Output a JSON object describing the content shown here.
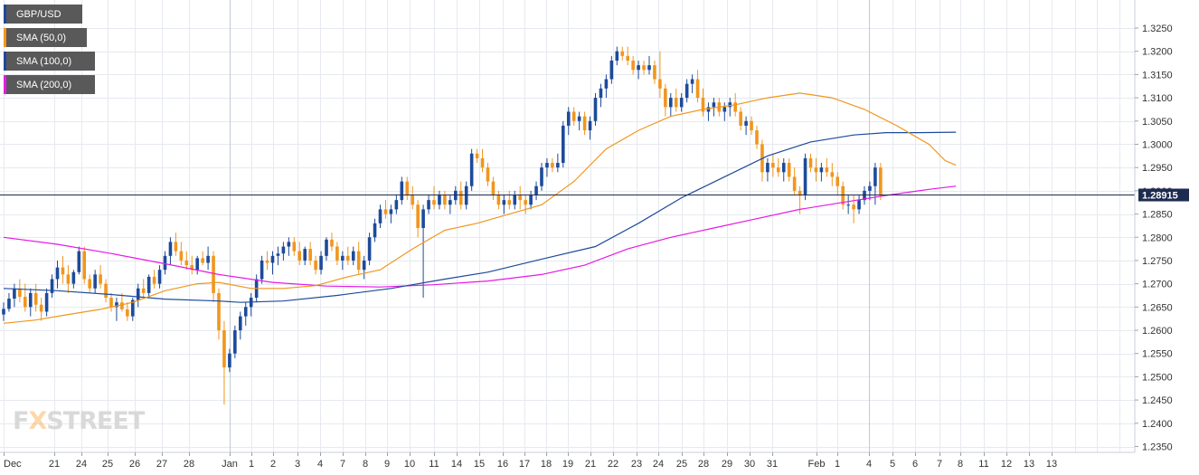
{
  "legend": [
    {
      "label": "GBP/USD",
      "color": "#1d4a9b"
    },
    {
      "label": "SMA (50,0)",
      "color": "#f0961e"
    },
    {
      "label": "SMA (100,0)",
      "color": "#1d4a9b"
    },
    {
      "label": "SMA (200,0)",
      "color": "#e619e6"
    }
  ],
  "logo": {
    "part1": "F",
    "part2": "X",
    "part3": "STREET"
  },
  "colors": {
    "up": "#1d4a9b",
    "down": "#f0961e",
    "sma50": "#f0961e",
    "sma100": "#1d4a9b",
    "sma200": "#e619e6",
    "price_line": "#1d2b50",
    "grid": "#e6e9ef"
  },
  "chart_data": {
    "type": "candlestick",
    "title": "",
    "current_price": 1.28915,
    "current_price_label": "1.28915",
    "ylim": [
      1.2335,
      1.3275
    ],
    "y_ticks": [
      "1.2350",
      "1.2400",
      "1.2450",
      "1.2500",
      "1.2550",
      "1.2600",
      "1.2650",
      "1.2700",
      "1.2750",
      "1.2800",
      "1.2850",
      "1.2900",
      "1.2950",
      "1.3000",
      "1.3050",
      "1.3100",
      "1.3150",
      "1.3200",
      "1.3250"
    ],
    "x_labels": [
      "Dec",
      "21",
      "24",
      "25",
      "26",
      "27",
      "28",
      "Jan",
      "1",
      "2",
      "3",
      "4",
      "7",
      "8",
      "9",
      "10",
      "11",
      "14",
      "15",
      "16",
      "17",
      "18",
      "19",
      "21",
      "22",
      "23",
      "24",
      "25",
      "28",
      "29",
      "30",
      "31",
      "Feb",
      "1",
      "4",
      "5",
      "6",
      "7",
      "8",
      "11",
      "12",
      "13",
      "13"
    ],
    "x_label_index": [
      0,
      4.5,
      8,
      11,
      14,
      17,
      20,
      23,
      26,
      28.2,
      31,
      34,
      37,
      40,
      43,
      46,
      49,
      52,
      55,
      57.5,
      60,
      63,
      66,
      69,
      72,
      75,
      78,
      81,
      84,
      87,
      90,
      93,
      96,
      99,
      102,
      105,
      108,
      111,
      114,
      117,
      120,
      123,
      126
    ],
    "candles": [
      [
        1.2634,
        1.266,
        1.262,
        1.2646
      ],
      [
        1.2646,
        1.268,
        1.264,
        1.2668
      ],
      [
        1.2668,
        1.27,
        1.265,
        1.269
      ],
      [
        1.269,
        1.271,
        1.266,
        1.2672
      ],
      [
        1.2672,
        1.27,
        1.264,
        1.265
      ],
      [
        1.265,
        1.269,
        1.263,
        1.268
      ],
      [
        1.268,
        1.27,
        1.264,
        1.2655
      ],
      [
        1.2655,
        1.267,
        1.262,
        1.264
      ],
      [
        1.264,
        1.269,
        1.263,
        1.268
      ],
      [
        1.268,
        1.272,
        1.267,
        1.271
      ],
      [
        1.271,
        1.275,
        1.269,
        1.2735
      ],
      [
        1.2735,
        1.276,
        1.27,
        1.272
      ],
      [
        1.272,
        1.274,
        1.268,
        1.27
      ],
      [
        1.27,
        1.273,
        1.269,
        1.2725
      ],
      [
        1.2725,
        1.278,
        1.272,
        1.277
      ],
      [
        1.277,
        1.278,
        1.27,
        1.271
      ],
      [
        1.271,
        1.272,
        1.268,
        1.269
      ],
      [
        1.269,
        1.273,
        1.268,
        1.272
      ],
      [
        1.272,
        1.274,
        1.269,
        1.27
      ],
      [
        1.27,
        1.271,
        1.266,
        1.267
      ],
      [
        1.267,
        1.268,
        1.264,
        1.265
      ],
      [
        1.265,
        1.267,
        1.262,
        1.266
      ],
      [
        1.266,
        1.268,
        1.264,
        1.2645
      ],
      [
        1.2645,
        1.266,
        1.262,
        1.263
      ],
      [
        1.263,
        1.267,
        1.262,
        1.2665
      ],
      [
        1.2665,
        1.27,
        1.265,
        1.269
      ],
      [
        1.269,
        1.271,
        1.267,
        1.268
      ],
      [
        1.268,
        1.272,
        1.267,
        1.2715
      ],
      [
        1.2715,
        1.273,
        1.269,
        1.27
      ],
      [
        1.27,
        1.274,
        1.269,
        1.273
      ],
      [
        1.273,
        1.277,
        1.272,
        1.276
      ],
      [
        1.276,
        1.28,
        1.274,
        1.279
      ],
      [
        1.279,
        1.281,
        1.276,
        1.277
      ],
      [
        1.277,
        1.279,
        1.274,
        1.275
      ],
      [
        1.275,
        1.277,
        1.273,
        1.274
      ],
      [
        1.274,
        1.276,
        1.272,
        1.273
      ],
      [
        1.273,
        1.276,
        1.272,
        1.2755
      ],
      [
        1.2755,
        1.277,
        1.274,
        1.2745
      ],
      [
        1.2745,
        1.278,
        1.273,
        1.276
      ],
      [
        1.276,
        1.277,
        1.266,
        1.268
      ],
      [
        1.268,
        1.269,
        1.258,
        1.26
      ],
      [
        1.26,
        1.262,
        1.244,
        1.252
      ],
      [
        1.252,
        1.256,
        1.251,
        1.255
      ],
      [
        1.255,
        1.261,
        1.254,
        1.26
      ],
      [
        1.26,
        1.264,
        1.258,
        1.263
      ],
      [
        1.263,
        1.266,
        1.261,
        1.265
      ],
      [
        1.265,
        1.268,
        1.263,
        1.267
      ],
      [
        1.267,
        1.272,
        1.266,
        1.271
      ],
      [
        1.271,
        1.276,
        1.27,
        1.275
      ],
      [
        1.275,
        1.277,
        1.273,
        1.2745
      ],
      [
        1.2745,
        1.277,
        1.272,
        1.276
      ],
      [
        1.276,
        1.278,
        1.274,
        1.2765
      ],
      [
        1.2765,
        1.279,
        1.275,
        1.278
      ],
      [
        1.278,
        1.28,
        1.276,
        1.279
      ],
      [
        1.279,
        1.28,
        1.276,
        1.277
      ],
      [
        1.277,
        1.279,
        1.274,
        1.275
      ],
      [
        1.275,
        1.278,
        1.274,
        1.2775
      ],
      [
        1.2775,
        1.279,
        1.274,
        1.275
      ],
      [
        1.275,
        1.276,
        1.272,
        1.273
      ],
      [
        1.273,
        1.277,
        1.272,
        1.276
      ],
      [
        1.276,
        1.28,
        1.275,
        1.2795
      ],
      [
        1.2795,
        1.281,
        1.277,
        1.278
      ],
      [
        1.278,
        1.279,
        1.274,
        1.275
      ],
      [
        1.275,
        1.277,
        1.273,
        1.276
      ],
      [
        1.276,
        1.278,
        1.274,
        1.275
      ],
      [
        1.275,
        1.278,
        1.274,
        1.277
      ],
      [
        1.277,
        1.279,
        1.272,
        1.273
      ],
      [
        1.273,
        1.276,
        1.271,
        1.275
      ],
      [
        1.275,
        1.281,
        1.274,
        1.28
      ],
      [
        1.28,
        1.284,
        1.279,
        1.283
      ],
      [
        1.283,
        1.287,
        1.282,
        1.286
      ],
      [
        1.286,
        1.288,
        1.284,
        1.285
      ],
      [
        1.285,
        1.287,
        1.283,
        1.286
      ],
      [
        1.286,
        1.289,
        1.285,
        1.288
      ],
      [
        1.288,
        1.293,
        1.287,
        1.292
      ],
      [
        1.292,
        1.293,
        1.288,
        1.289
      ],
      [
        1.289,
        1.291,
        1.286,
        1.287
      ],
      [
        1.287,
        1.288,
        1.28,
        1.282
      ],
      [
        1.282,
        1.287,
        1.267,
        1.286
      ],
      [
        1.286,
        1.289,
        1.285,
        1.288
      ],
      [
        1.288,
        1.291,
        1.286,
        1.287
      ],
      [
        1.287,
        1.29,
        1.286,
        1.289
      ],
      [
        1.289,
        1.29,
        1.286,
        1.287
      ],
      [
        1.287,
        1.289,
        1.285,
        1.288
      ],
      [
        1.288,
        1.291,
        1.287,
        1.29
      ],
      [
        1.29,
        1.292,
        1.286,
        1.287
      ],
      [
        1.287,
        1.292,
        1.286,
        1.291
      ],
      [
        1.291,
        1.299,
        1.29,
        1.298
      ],
      [
        1.298,
        1.299,
        1.296,
        1.297
      ],
      [
        1.297,
        1.299,
        1.294,
        1.295
      ],
      [
        1.295,
        1.296,
        1.291,
        1.292
      ],
      [
        1.292,
        1.293,
        1.288,
        1.289
      ],
      [
        1.289,
        1.29,
        1.286,
        1.287
      ],
      [
        1.287,
        1.289,
        1.285,
        1.288
      ],
      [
        1.288,
        1.29,
        1.286,
        1.287
      ],
      [
        1.287,
        1.29,
        1.286,
        1.289
      ],
      [
        1.289,
        1.291,
        1.286,
        1.288
      ],
      [
        1.288,
        1.289,
        1.285,
        1.287
      ],
      [
        1.287,
        1.29,
        1.286,
        1.289
      ],
      [
        1.289,
        1.292,
        1.288,
        1.291
      ],
      [
        1.291,
        1.296,
        1.29,
        1.295
      ],
      [
        1.295,
        1.297,
        1.293,
        1.296
      ],
      [
        1.296,
        1.297,
        1.294,
        1.295
      ],
      [
        1.295,
        1.298,
        1.294,
        1.296
      ],
      [
        1.296,
        1.305,
        1.295,
        1.304
      ],
      [
        1.304,
        1.308,
        1.302,
        1.307
      ],
      [
        1.307,
        1.308,
        1.304,
        1.305
      ],
      [
        1.305,
        1.307,
        1.303,
        1.306
      ],
      [
        1.306,
        1.307,
        1.302,
        1.303
      ],
      [
        1.303,
        1.306,
        1.301,
        1.305
      ],
      [
        1.305,
        1.311,
        1.304,
        1.31
      ],
      [
        1.31,
        1.313,
        1.308,
        1.312
      ],
      [
        1.312,
        1.315,
        1.31,
        1.314
      ],
      [
        1.314,
        1.319,
        1.313,
        1.318
      ],
      [
        1.318,
        1.321,
        1.317,
        1.32
      ],
      [
        1.32,
        1.321,
        1.318,
        1.319
      ],
      [
        1.319,
        1.321,
        1.317,
        1.318
      ],
      [
        1.318,
        1.319,
        1.315,
        1.316
      ],
      [
        1.316,
        1.318,
        1.314,
        1.317
      ],
      [
        1.317,
        1.318,
        1.315,
        1.316
      ],
      [
        1.316,
        1.319,
        1.315,
        1.317
      ],
      [
        1.317,
        1.318,
        1.313,
        1.314
      ],
      [
        1.314,
        1.32,
        1.31,
        1.312
      ],
      [
        1.312,
        1.313,
        1.306,
        1.308
      ],
      [
        1.308,
        1.311,
        1.306,
        1.31
      ],
      [
        1.31,
        1.312,
        1.307,
        1.308
      ],
      [
        1.308,
        1.311,
        1.307,
        1.31
      ],
      [
        1.31,
        1.314,
        1.309,
        1.313
      ],
      [
        1.313,
        1.315,
        1.311,
        1.314
      ],
      [
        1.314,
        1.316,
        1.309,
        1.31
      ],
      [
        1.31,
        1.312,
        1.306,
        1.307
      ],
      [
        1.307,
        1.309,
        1.305,
        1.308
      ],
      [
        1.308,
        1.31,
        1.306,
        1.309
      ],
      [
        1.309,
        1.31,
        1.306,
        1.307
      ],
      [
        1.307,
        1.309,
        1.305,
        1.308
      ],
      [
        1.308,
        1.31,
        1.306,
        1.309
      ],
      [
        1.309,
        1.311,
        1.306,
        1.307
      ],
      [
        1.307,
        1.308,
        1.303,
        1.304
      ],
      [
        1.304,
        1.306,
        1.302,
        1.305
      ],
      [
        1.305,
        1.306,
        1.302,
        1.303
      ],
      [
        1.303,
        1.304,
        1.299,
        1.3
      ],
      [
        1.3,
        1.301,
        1.292,
        1.294
      ],
      [
        1.294,
        1.297,
        1.292,
        1.296
      ],
      [
        1.296,
        1.298,
        1.293,
        1.295
      ],
      [
        1.295,
        1.297,
        1.293,
        1.294
      ],
      [
        1.294,
        1.297,
        1.292,
        1.296
      ],
      [
        1.296,
        1.297,
        1.292,
        1.293
      ],
      [
        1.293,
        1.295,
        1.289,
        1.29
      ],
      [
        1.29,
        1.291,
        1.285,
        1.289
      ],
      [
        1.289,
        1.298,
        1.288,
        1.297
      ],
      [
        1.297,
        1.298,
        1.294,
        1.295
      ],
      [
        1.295,
        1.297,
        1.292,
        1.294
      ],
      [
        1.294,
        1.296,
        1.292,
        1.295
      ],
      [
        1.295,
        1.297,
        1.293,
        1.294
      ],
      [
        1.294,
        1.296,
        1.291,
        1.293
      ],
      [
        1.293,
        1.294,
        1.289,
        1.291
      ],
      [
        1.291,
        1.292,
        1.286,
        1.287
      ],
      [
        1.287,
        1.289,
        1.285,
        1.287
      ],
      [
        1.287,
        1.289,
        1.283,
        1.286
      ],
      [
        1.286,
        1.289,
        1.285,
        1.288
      ],
      [
        1.288,
        1.291,
        1.287,
        1.29
      ],
      [
        1.29,
        1.292,
        1.288,
        1.291
      ],
      [
        1.291,
        1.296,
        1.287,
        1.295
      ],
      [
        1.295,
        1.296,
        1.288,
        1.2891
      ]
    ],
    "sma50": [
      [
        0,
        1.2615
      ],
      [
        6,
        1.2622
      ],
      [
        12,
        1.2634
      ],
      [
        18,
        1.2645
      ],
      [
        24,
        1.266
      ],
      [
        30,
        1.2685
      ],
      [
        36,
        1.27
      ],
      [
        40,
        1.2703
      ],
      [
        46,
        1.269
      ],
      [
        52,
        1.269
      ],
      [
        58,
        1.2696
      ],
      [
        64,
        1.2715
      ],
      [
        70,
        1.273
      ],
      [
        76,
        1.2775
      ],
      [
        82,
        1.2815
      ],
      [
        88,
        1.283
      ],
      [
        94,
        1.285
      ],
      [
        100,
        1.287
      ],
      [
        106,
        1.292
      ],
      [
        112,
        1.299
      ],
      [
        118,
        1.303
      ],
      [
        124,
        1.306
      ],
      [
        130,
        1.3075
      ],
      [
        136,
        1.3085
      ],
      [
        142,
        1.31
      ],
      [
        148,
        1.311
      ],
      [
        154,
        1.31
      ],
      [
        160,
        1.3075
      ],
      [
        166,
        1.304
      ],
      [
        172,
        1.3
      ],
      [
        175,
        1.2965
      ],
      [
        177,
        1.2955
      ]
    ],
    "sma100": [
      [
        0,
        1.269
      ],
      [
        10,
        1.2685
      ],
      [
        20,
        1.2677
      ],
      [
        30,
        1.2667
      ],
      [
        40,
        1.2663
      ],
      [
        44,
        1.266
      ],
      [
        52,
        1.2663
      ],
      [
        62,
        1.2675
      ],
      [
        72,
        1.269
      ],
      [
        82,
        1.271
      ],
      [
        90,
        1.2725
      ],
      [
        100,
        1.2753
      ],
      [
        110,
        1.278
      ],
      [
        118,
        1.283
      ],
      [
        126,
        1.2885
      ],
      [
        134,
        1.293
      ],
      [
        142,
        1.2975
      ],
      [
        150,
        1.3005
      ],
      [
        158,
        1.302
      ],
      [
        164,
        1.3025
      ],
      [
        170,
        1.3025
      ],
      [
        177,
        1.3026
      ]
    ],
    "sma200": [
      [
        0,
        1.28
      ],
      [
        10,
        1.2785
      ],
      [
        20,
        1.2765
      ],
      [
        30,
        1.2743
      ],
      [
        40,
        1.272
      ],
      [
        50,
        1.2703
      ],
      [
        60,
        1.2695
      ],
      [
        70,
        1.2693
      ],
      [
        80,
        1.2698
      ],
      [
        90,
        1.2706
      ],
      [
        100,
        1.272
      ],
      [
        108,
        1.274
      ],
      [
        116,
        1.2775
      ],
      [
        124,
        1.28
      ],
      [
        132,
        1.282
      ],
      [
        140,
        1.284
      ],
      [
        148,
        1.286
      ],
      [
        156,
        1.2875
      ],
      [
        164,
        1.289
      ],
      [
        172,
        1.2903
      ],
      [
        177,
        1.291
      ]
    ]
  }
}
